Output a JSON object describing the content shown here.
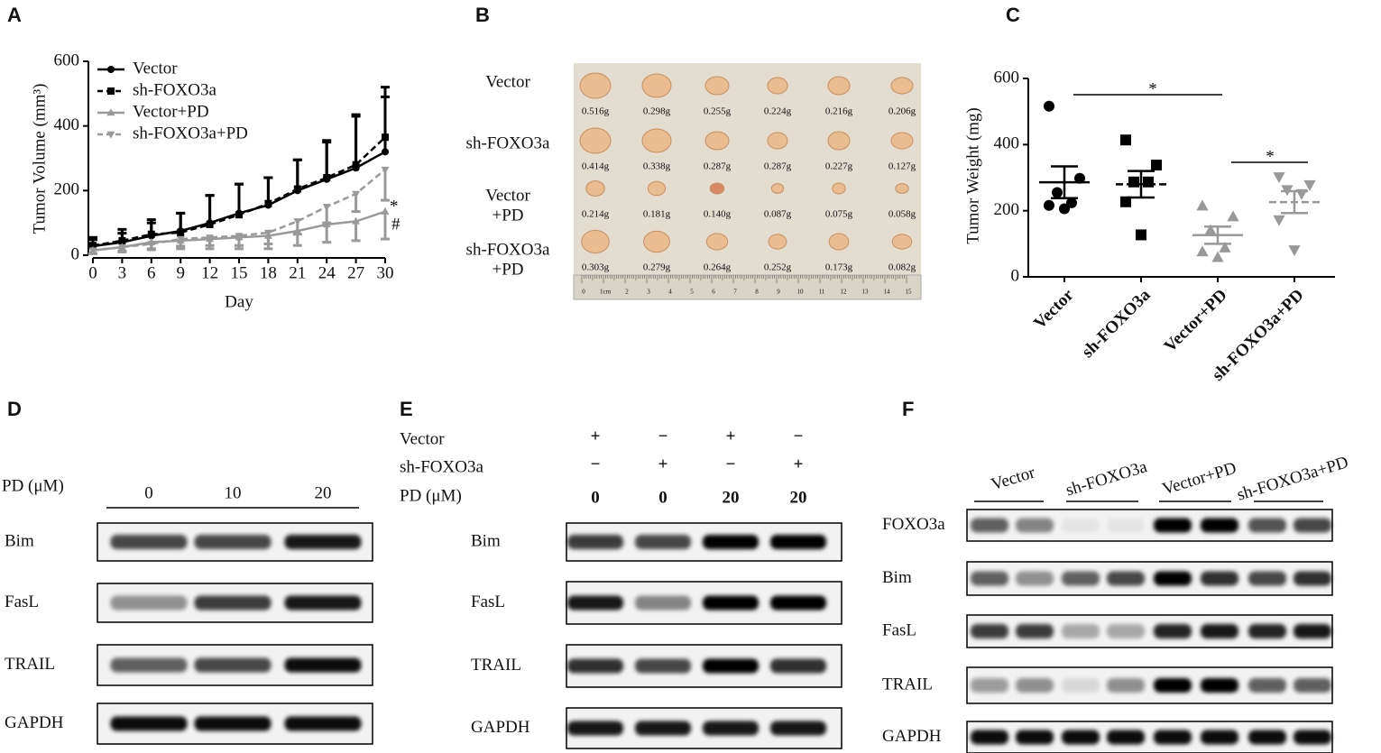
{
  "panel_labels": [
    "A",
    "B",
    "C",
    "D",
    "E",
    "F"
  ],
  "chart_data": [
    {
      "type": "line",
      "x_label": "Day",
      "y_label": "Tumor Volume (mm³)",
      "x": [
        0,
        3,
        6,
        9,
        12,
        15,
        18,
        21,
        24,
        27,
        30
      ],
      "xlim": [
        0,
        30
      ],
      "xticks": [
        0,
        3,
        6,
        9,
        12,
        15,
        18,
        21,
        24,
        27,
        30
      ],
      "ylim": [
        0,
        600
      ],
      "yticks": [
        0,
        200,
        400,
        600
      ],
      "series": [
        {
          "name": "Vector",
          "color": "#000000",
          "marker": "circle",
          "dashed": false,
          "error_side": "up",
          "values": [
            28,
            40,
            60,
            75,
            100,
            130,
            155,
            200,
            235,
            270,
            320
          ],
          "errors": [
            20,
            28,
            40,
            55,
            85,
            90,
            85,
            95,
            115,
            160,
            170
          ]
        },
        {
          "name": "sh-FOXO3a",
          "color": "#000000",
          "marker": "square",
          "dashed": true,
          "error_side": "up",
          "values": [
            30,
            45,
            65,
            70,
            95,
            125,
            160,
            205,
            240,
            280,
            365
          ],
          "errors": [
            25,
            35,
            45,
            60,
            90,
            95,
            80,
            90,
            115,
            155,
            155
          ]
        },
        {
          "name": "Vector+PD",
          "color": "#999999",
          "marker": "triangle",
          "dashed": false,
          "error_side": "down",
          "values": [
            15,
            25,
            40,
            45,
            50,
            55,
            60,
            75,
            95,
            105,
            135
          ],
          "errors": [
            10,
            15,
            20,
            25,
            30,
            35,
            40,
            45,
            55,
            60,
            85
          ]
        },
        {
          "name": "sh-FOXO3a+PD",
          "color": "#999999",
          "marker": "triangle-down",
          "dashed": true,
          "error_side": "down",
          "values": [
            15,
            25,
            35,
            50,
            55,
            60,
            70,
            105,
            150,
            190,
            265
          ],
          "errors": [
            10,
            12,
            18,
            22,
            25,
            30,
            35,
            40,
            50,
            55,
            95
          ]
        }
      ],
      "annotations": [
        "*",
        "#"
      ]
    },
    {
      "type": "dot",
      "y_label": "Tumor Weight (mg)",
      "categories": [
        "Vector",
        "sh-FOXO3a",
        "Vector+PD",
        "sh-FOXO3a+PD"
      ],
      "ylim": [
        0,
        600
      ],
      "yticks": [
        0,
        200,
        400,
        600
      ],
      "markers": [
        "circle",
        "square",
        "triangle",
        "triangle-down"
      ],
      "colors": [
        "#000000",
        "#000000",
        "#999999",
        "#999999"
      ],
      "mean_dashed": [
        false,
        true,
        false,
        true
      ],
      "points": [
        [
          516,
          298,
          255,
          224,
          216,
          206
        ],
        [
          414,
          338,
          287,
          287,
          227,
          127
        ],
        [
          214,
          181,
          140,
          87,
          75,
          58
        ],
        [
          303,
          279,
          264,
          252,
          173,
          82
        ]
      ],
      "means": [
        286,
        280,
        126,
        226
      ],
      "errors": [
        48,
        40,
        26,
        33
      ],
      "annotations": [
        "*",
        "*"
      ]
    }
  ],
  "tumor_photo": {
    "rows": [
      {
        "label": [
          "Vector"
        ],
        "weights": [
          "0.516g",
          "0.298g",
          "0.255g",
          "0.224g",
          "0.216g",
          "0.206g"
        ]
      },
      {
        "label": [
          "sh-FOXO3a"
        ],
        "weights": [
          "0.414g",
          "0.338g",
          "0.287g",
          "0.287g",
          "0.227g",
          "0.127g"
        ]
      },
      {
        "label": [
          "Vector",
          "+PD"
        ],
        "weights": [
          "0.214g",
          "0.181g",
          "0.140g",
          "0.087g",
          "0.075g",
          "0.058g"
        ]
      },
      {
        "label": [
          "sh-FOXO3a",
          "+PD"
        ],
        "weights": [
          "0.303g",
          "0.279g",
          "0.264g",
          "0.252g",
          "0.173g",
          "0.082g"
        ]
      }
    ],
    "ruler_labels": [
      "0",
      "1cm",
      "2",
      "3",
      "4",
      "5",
      "6",
      "7",
      "8",
      "9",
      "10",
      "11",
      "12",
      "13",
      "14",
      "15"
    ]
  },
  "blot_D": {
    "condition": "PD (μM)",
    "doses": [
      "0",
      "10",
      "20"
    ],
    "rows": [
      "Bim",
      "FasL",
      "TRAIL",
      "GAPDH"
    ]
  },
  "blot_E": {
    "conditions": [
      {
        "label": "Vector",
        "lanes": [
          "+",
          "−",
          "+",
          "−"
        ]
      },
      {
        "label": "sh-FOXO3a",
        "lanes": [
          "−",
          "+",
          "−",
          "+"
        ]
      },
      {
        "label": "PD (μM)",
        "lanes": [
          "0",
          "0",
          "20",
          "20"
        ]
      }
    ],
    "rows": [
      "Bim",
      "FasL",
      "TRAIL",
      "GAPDH"
    ]
  },
  "blot_F": {
    "groups": [
      "Vector",
      "sh-FOXO3a",
      "Vector+PD",
      "sh-FOXO3a+PD"
    ],
    "rows": [
      "FOXO3a",
      "Bim",
      "FasL",
      "TRAIL",
      "GAPDH"
    ]
  }
}
